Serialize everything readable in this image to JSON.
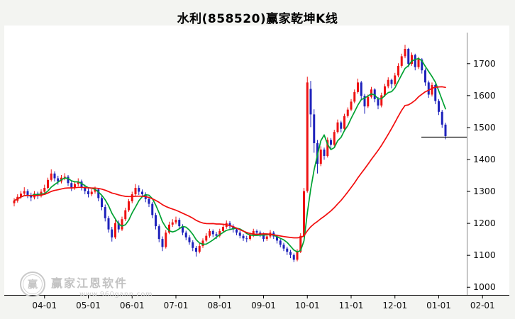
{
  "title": "水利(858520)赢家乾坤K线",
  "watermark": {
    "logo_text": "赢",
    "line1": "赢家江恩软件",
    "line2": "www.960gann.com"
  },
  "chart_data": {
    "type": "candlestick",
    "title": "水利(858520)赢家乾坤K线",
    "xlabel": "",
    "ylabel": "",
    "grid": false,
    "legend_position": "none",
    "ylim": [
      975,
      1765
    ],
    "y_ticks": [
      1000,
      1100,
      1200,
      1300,
      1400,
      1500,
      1600,
      1700
    ],
    "x_tick_labels": [
      "04-01",
      "05-01",
      "06-01",
      "07-01",
      "08-01",
      "09-01",
      "10-01",
      "11-01",
      "12-01",
      "01-01",
      "02-01"
    ],
    "x_tick_indices": [
      9,
      22,
      35,
      48,
      61,
      74,
      87,
      100,
      113,
      126,
      139
    ],
    "last_price": 1470,
    "ma_lines": [
      {
        "name": "fast",
        "period": 6,
        "color": "#00a232"
      },
      {
        "name": "slow",
        "period": 30,
        "color": "#f20d0d"
      }
    ],
    "colors": {
      "up": "#ee1212",
      "down": "#1e22bb",
      "axis": "#000000",
      "tick_text": "#111111",
      "last_price_line": "#000000",
      "plot_background": "#ffffff"
    },
    "candles_ohlc": [
      [
        1262,
        1278,
        1252,
        1270
      ],
      [
        1270,
        1290,
        1264,
        1282
      ],
      [
        1282,
        1300,
        1276,
        1292
      ],
      [
        1292,
        1312,
        1286,
        1300
      ],
      [
        1300,
        1306,
        1278,
        1288
      ],
      [
        1288,
        1295,
        1268,
        1280
      ],
      [
        1280,
        1300,
        1274,
        1292
      ],
      [
        1292,
        1298,
        1275,
        1285
      ],
      [
        1285,
        1306,
        1280,
        1298
      ],
      [
        1298,
        1320,
        1292,
        1310
      ],
      [
        1310,
        1342,
        1305,
        1335
      ],
      [
        1335,
        1368,
        1330,
        1355
      ],
      [
        1355,
        1362,
        1330,
        1340
      ],
      [
        1340,
        1348,
        1320,
        1330
      ],
      [
        1330,
        1350,
        1324,
        1342
      ],
      [
        1342,
        1356,
        1334,
        1345
      ],
      [
        1345,
        1350,
        1316,
        1325
      ],
      [
        1325,
        1332,
        1300,
        1310
      ],
      [
        1310,
        1330,
        1304,
        1322
      ],
      [
        1322,
        1340,
        1315,
        1330
      ],
      [
        1330,
        1336,
        1302,
        1312
      ],
      [
        1312,
        1320,
        1290,
        1300
      ],
      [
        1300,
        1308,
        1280,
        1290
      ],
      [
        1290,
        1306,
        1284,
        1298
      ],
      [
        1298,
        1314,
        1292,
        1305
      ],
      [
        1305,
        1310,
        1268,
        1278
      ],
      [
        1278,
        1285,
        1240,
        1250
      ],
      [
        1250,
        1258,
        1205,
        1215
      ],
      [
        1215,
        1222,
        1170,
        1180
      ],
      [
        1180,
        1188,
        1142,
        1155
      ],
      [
        1155,
        1210,
        1150,
        1200
      ],
      [
        1200,
        1208,
        1170,
        1180
      ],
      [
        1180,
        1220,
        1175,
        1212
      ],
      [
        1212,
        1248,
        1206,
        1240
      ],
      [
        1240,
        1275,
        1235,
        1268
      ],
      [
        1268,
        1298,
        1262,
        1290
      ],
      [
        1290,
        1322,
        1285,
        1310
      ],
      [
        1310,
        1318,
        1288,
        1298
      ],
      [
        1298,
        1305,
        1280,
        1290
      ],
      [
        1290,
        1296,
        1265,
        1275
      ],
      [
        1275,
        1282,
        1250,
        1260
      ],
      [
        1260,
        1266,
        1215,
        1225
      ],
      [
        1225,
        1232,
        1180,
        1190
      ],
      [
        1190,
        1196,
        1140,
        1150
      ],
      [
        1150,
        1158,
        1112,
        1125
      ],
      [
        1125,
        1178,
        1120,
        1170
      ],
      [
        1170,
        1204,
        1165,
        1195
      ],
      [
        1195,
        1212,
        1188,
        1202
      ],
      [
        1202,
        1220,
        1196,
        1210
      ],
      [
        1210,
        1216,
        1182,
        1190
      ],
      [
        1190,
        1196,
        1162,
        1170
      ],
      [
        1170,
        1176,
        1146,
        1155
      ],
      [
        1155,
        1162,
        1132,
        1140
      ],
      [
        1140,
        1146,
        1112,
        1122
      ],
      [
        1122,
        1128,
        1095,
        1110
      ],
      [
        1110,
        1136,
        1105,
        1128
      ],
      [
        1128,
        1152,
        1122,
        1145
      ],
      [
        1145,
        1168,
        1140,
        1160
      ],
      [
        1160,
        1182,
        1154,
        1175
      ],
      [
        1175,
        1180,
        1156,
        1165
      ],
      [
        1165,
        1172,
        1150,
        1160
      ],
      [
        1160,
        1182,
        1155,
        1175
      ],
      [
        1175,
        1195,
        1170,
        1188
      ],
      [
        1188,
        1208,
        1182,
        1200
      ],
      [
        1200,
        1206,
        1182,
        1190
      ],
      [
        1190,
        1196,
        1170,
        1180
      ],
      [
        1180,
        1186,
        1162,
        1170
      ],
      [
        1170,
        1176,
        1152,
        1160
      ],
      [
        1160,
        1166,
        1144,
        1152
      ],
      [
        1152,
        1160,
        1140,
        1150
      ],
      [
        1150,
        1170,
        1145,
        1162
      ],
      [
        1162,
        1182,
        1156,
        1175
      ],
      [
        1175,
        1180,
        1162,
        1170
      ],
      [
        1170,
        1176,
        1156,
        1165
      ],
      [
        1165,
        1170,
        1142,
        1150
      ],
      [
        1150,
        1165,
        1144,
        1158
      ],
      [
        1158,
        1178,
        1152,
        1170
      ],
      [
        1170,
        1175,
        1150,
        1158
      ],
      [
        1158,
        1164,
        1136,
        1145
      ],
      [
        1145,
        1150,
        1124,
        1132
      ],
      [
        1132,
        1138,
        1112,
        1120
      ],
      [
        1120,
        1126,
        1100,
        1110
      ],
      [
        1110,
        1116,
        1090,
        1100
      ],
      [
        1100,
        1105,
        1078,
        1085
      ],
      [
        1085,
        1118,
        1080,
        1110
      ],
      [
        1110,
        1168,
        1106,
        1160
      ],
      [
        1160,
        1310,
        1155,
        1300
      ],
      [
        1300,
        1658,
        1295,
        1640
      ],
      [
        1620,
        1645,
        1500,
        1540
      ],
      [
        1540,
        1556,
        1420,
        1450
      ],
      [
        1450,
        1460,
        1355,
        1385
      ],
      [
        1385,
        1440,
        1378,
        1430
      ],
      [
        1430,
        1436,
        1398,
        1410
      ],
      [
        1410,
        1468,
        1405,
        1460
      ],
      [
        1460,
        1466,
        1432,
        1445
      ],
      [
        1445,
        1492,
        1440,
        1485
      ],
      [
        1485,
        1524,
        1480,
        1515
      ],
      [
        1515,
        1520,
        1484,
        1495
      ],
      [
        1495,
        1542,
        1490,
        1535
      ],
      [
        1535,
        1562,
        1530,
        1555
      ],
      [
        1555,
        1588,
        1550,
        1580
      ],
      [
        1580,
        1618,
        1575,
        1610
      ],
      [
        1610,
        1652,
        1605,
        1640
      ],
      [
        1640,
        1645,
        1588,
        1598
      ],
      [
        1598,
        1604,
        1542,
        1565
      ],
      [
        1565,
        1602,
        1560,
        1595
      ],
      [
        1595,
        1626,
        1590,
        1618
      ],
      [
        1618,
        1622,
        1578,
        1588
      ],
      [
        1588,
        1594,
        1556,
        1568
      ],
      [
        1568,
        1608,
        1562,
        1600
      ],
      [
        1600,
        1636,
        1595,
        1628
      ],
      [
        1628,
        1656,
        1622,
        1648
      ],
      [
        1648,
        1652,
        1622,
        1635
      ],
      [
        1635,
        1670,
        1630,
        1662
      ],
      [
        1662,
        1700,
        1656,
        1692
      ],
      [
        1692,
        1730,
        1686,
        1722
      ],
      [
        1722,
        1758,
        1716,
        1745
      ],
      [
        1745,
        1748,
        1688,
        1698
      ],
      [
        1698,
        1734,
        1692,
        1726
      ],
      [
        1726,
        1730,
        1678,
        1688
      ],
      [
        1688,
        1720,
        1682,
        1712
      ],
      [
        1712,
        1716,
        1668,
        1678
      ],
      [
        1678,
        1684,
        1630,
        1640
      ],
      [
        1640,
        1646,
        1592,
        1602
      ],
      [
        1602,
        1640,
        1596,
        1632
      ],
      [
        1632,
        1636,
        1572,
        1582
      ],
      [
        1582,
        1588,
        1538,
        1548
      ],
      [
        1548,
        1554,
        1498,
        1508
      ],
      [
        1508,
        1514,
        1462,
        1472
      ]
    ]
  }
}
